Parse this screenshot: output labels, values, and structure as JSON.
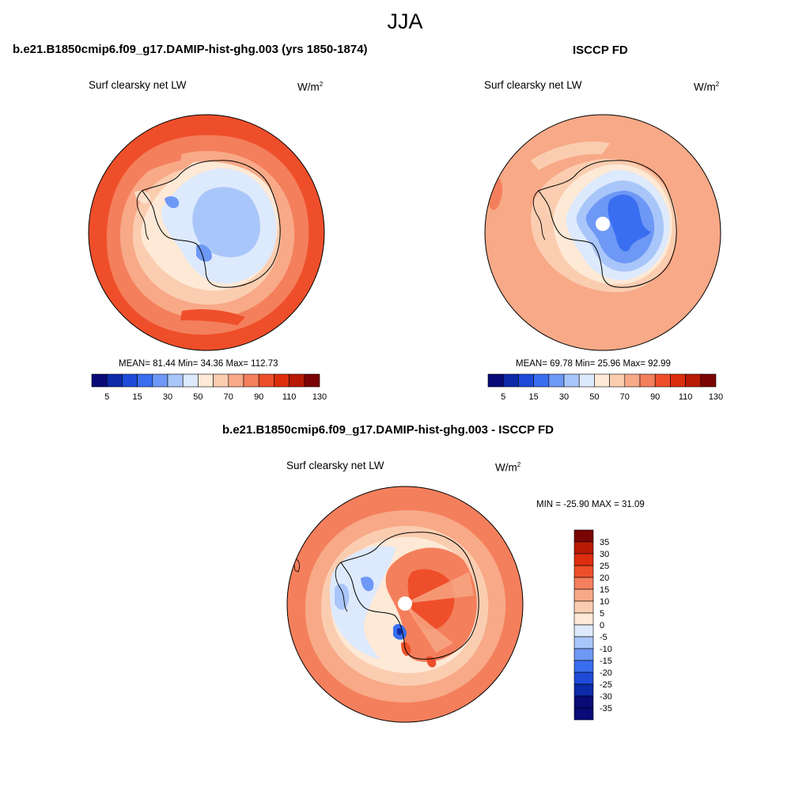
{
  "figure": {
    "title": "JJA",
    "variable": "Surf clearsky net LW",
    "units_base": "W/m",
    "units_exp": "2"
  },
  "panels": [
    {
      "title": "b.e21.B1850cmip6.f09_g17.DAMIP-hist-ghg.003 (yrs 1850-1874)",
      "stats": "MEAN=  81.44  Min=  34.36  Max= 112.73"
    },
    {
      "title": "ISCCP FD",
      "stats": "MEAN=  69.78  Min=  25.96  Max=  92.99"
    },
    {
      "title": "b.e21.B1850cmip6.f09_g17.DAMIP-hist-ghg.003 - ISCCP FD",
      "stats": "MIN = -25.90 MAX =  31.09"
    }
  ],
  "colorbar_top": {
    "colors": [
      "#0a0a78",
      "#0d2aa8",
      "#1e4ad8",
      "#3a6ef0",
      "#6e98f5",
      "#a9c6fa",
      "#dde9fc",
      "#fde9d6",
      "#fbcdb0",
      "#f8a987",
      "#f47f5c",
      "#ee4f2a",
      "#dc2e0d",
      "#b81a06",
      "#7a0404"
    ],
    "ticks": [
      "5",
      "15",
      "30",
      "50",
      "70",
      "90",
      "110",
      "130"
    ]
  },
  "colorbar_diff": {
    "colors": [
      "#7a0404",
      "#b81a06",
      "#dc2e0d",
      "#ee4f2a",
      "#f47f5c",
      "#f8a987",
      "#fbcdb0",
      "#fde9d6",
      "#dde9fc",
      "#a9c6fa",
      "#6e98f5",
      "#3a6ef0",
      "#1e4ad8",
      "#0d2aa8",
      "#0a0a78",
      "#0a0a78"
    ],
    "ticks": [
      "35",
      "30",
      "25",
      "20",
      "15",
      "10",
      "5",
      "0",
      "-5",
      "-10",
      "-15",
      "-20",
      "-25",
      "-30",
      "-35"
    ]
  }
}
